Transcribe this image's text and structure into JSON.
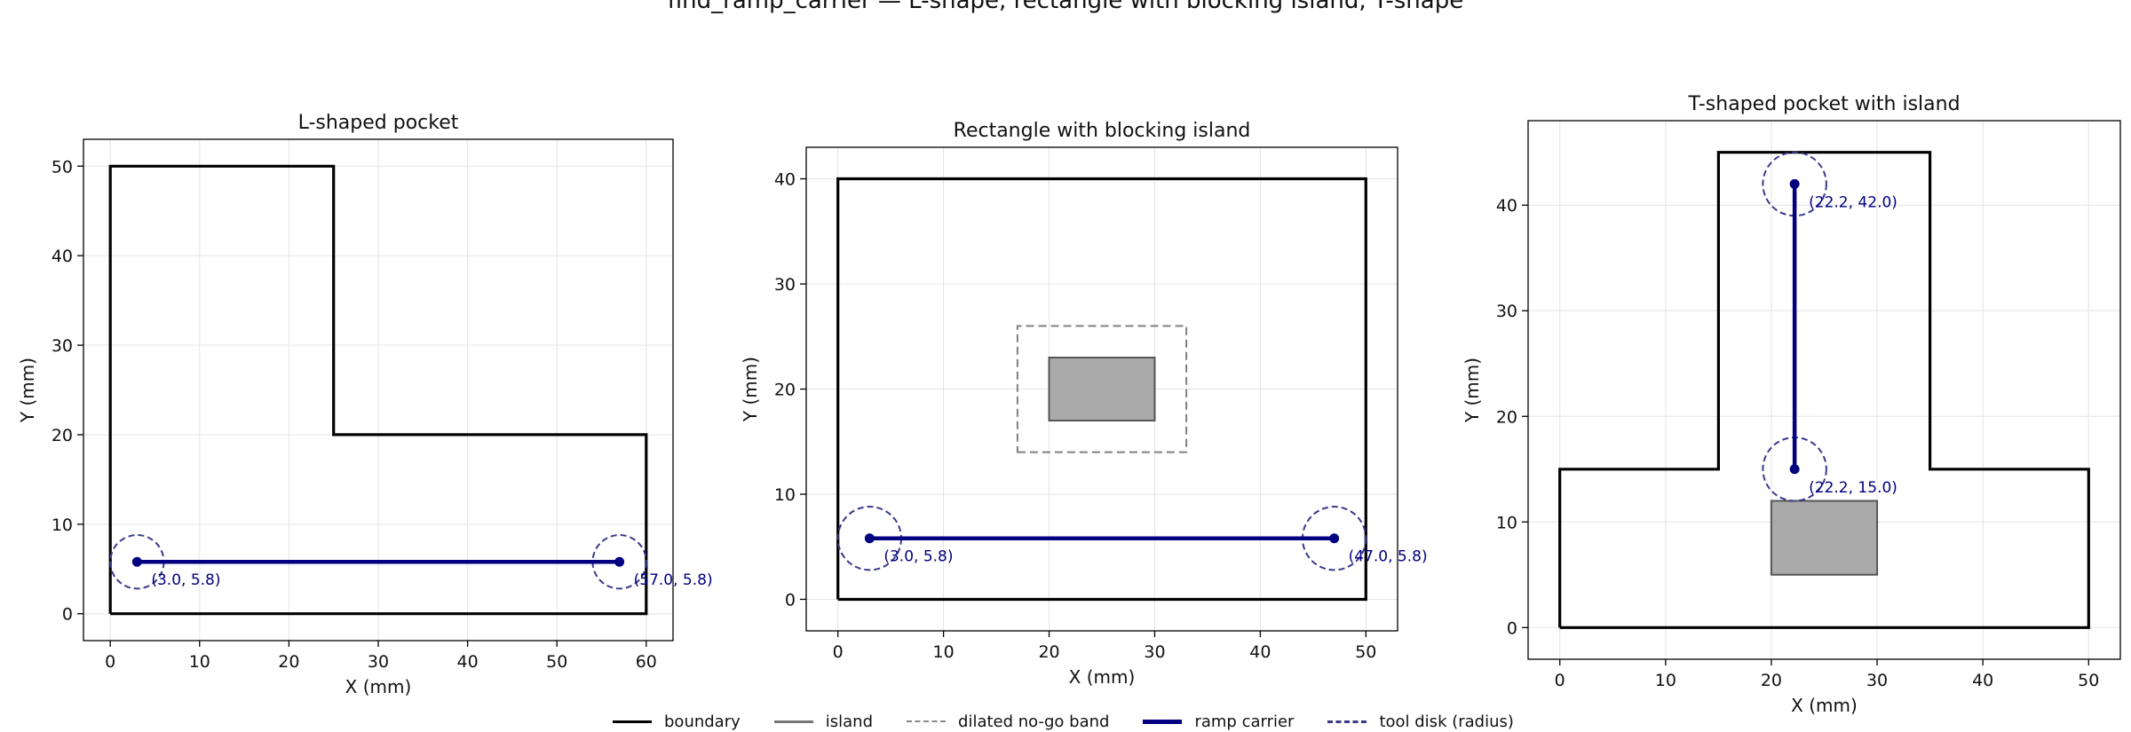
{
  "figure": {
    "title": "find_ramp_carrier — L-shape, rectangle with blocking island, T-shape"
  },
  "colors": {
    "boundary": "#000000",
    "island_fill": "#aaaaaa",
    "island_edge": "#555555",
    "band": "#808080",
    "carrier": "#000080",
    "disk": "#3a3a8c",
    "grid": "#e4e4e4"
  },
  "legend": {
    "position": "bottom-center",
    "items": [
      {
        "key": "boundary",
        "label": "boundary"
      },
      {
        "key": "island",
        "label": "island"
      },
      {
        "key": "band",
        "label": "dilated no-go band"
      },
      {
        "key": "carrier",
        "label": "ramp carrier"
      },
      {
        "key": "disk",
        "label": "tool disk (radius)"
      }
    ]
  },
  "chart_data": [
    {
      "type": "line",
      "title": "L-shaped pocket",
      "xlabel": "X (mm)",
      "ylabel": "Y (mm)",
      "xlim": [
        -3,
        63
      ],
      "ylim": [
        -3,
        53
      ],
      "xticks": [
        0,
        10,
        20,
        30,
        40,
        50,
        60
      ],
      "yticks": [
        0,
        10,
        20,
        30,
        40,
        50
      ],
      "grid": true,
      "boundary": [
        [
          0,
          0
        ],
        [
          60,
          0
        ],
        [
          60,
          20
        ],
        [
          25,
          20
        ],
        [
          25,
          50
        ],
        [
          0,
          50
        ],
        [
          0,
          0
        ]
      ],
      "islands": [],
      "bands": [],
      "carrier": {
        "start": [
          3.0,
          5.8
        ],
        "end": [
          57.0,
          5.8
        ]
      },
      "tool_radius": 3.0,
      "labels": [
        "(3.0, 5.8)",
        "(57.0, 5.8)"
      ]
    },
    {
      "type": "line",
      "title": "Rectangle with blocking island",
      "xlabel": "X (mm)",
      "ylabel": "Y (mm)",
      "xlim": [
        -3,
        53
      ],
      "ylim": [
        -3,
        43
      ],
      "xticks": [
        0,
        10,
        20,
        30,
        40,
        50
      ],
      "yticks": [
        0,
        10,
        20,
        30,
        40
      ],
      "grid": true,
      "boundary": [
        [
          0,
          0
        ],
        [
          50,
          0
        ],
        [
          50,
          40
        ],
        [
          0,
          40
        ],
        [
          0,
          0
        ]
      ],
      "islands": [
        [
          [
            20,
            17
          ],
          [
            30,
            17
          ],
          [
            30,
            23
          ],
          [
            20,
            23
          ],
          [
            20,
            17
          ]
        ]
      ],
      "bands": [
        [
          [
            17,
            14
          ],
          [
            33,
            14
          ],
          [
            33,
            26
          ],
          [
            17,
            26
          ],
          [
            17,
            14
          ]
        ]
      ],
      "carrier": {
        "start": [
          3.0,
          5.8
        ],
        "end": [
          47.0,
          5.8
        ]
      },
      "tool_radius": 3.0,
      "labels": [
        "(3.0, 5.8)",
        "(47.0, 5.8)"
      ]
    },
    {
      "type": "line",
      "title": "T-shaped pocket with island",
      "xlabel": "X (mm)",
      "ylabel": "Y (mm)",
      "xlim": [
        -3,
        53
      ],
      "ylim": [
        -3,
        48
      ],
      "xticks": [
        0,
        10,
        20,
        30,
        40,
        50
      ],
      "yticks": [
        0,
        10,
        20,
        30,
        40
      ],
      "grid": true,
      "boundary": [
        [
          0,
          0
        ],
        [
          50,
          0
        ],
        [
          50,
          15
        ],
        [
          35,
          15
        ],
        [
          35,
          45
        ],
        [
          15,
          45
        ],
        [
          15,
          15
        ],
        [
          0,
          15
        ],
        [
          0,
          0
        ]
      ],
      "islands": [
        [
          [
            20,
            5
          ],
          [
            30,
            5
          ],
          [
            30,
            12
          ],
          [
            20,
            12
          ],
          [
            20,
            5
          ]
        ]
      ],
      "bands": [],
      "carrier": {
        "start": [
          22.2,
          15.0
        ],
        "end": [
          22.2,
          42.0
        ]
      },
      "tool_radius": 3.0,
      "labels": [
        "(22.2, 15.0)",
        "(22.2, 42.0)"
      ]
    }
  ]
}
